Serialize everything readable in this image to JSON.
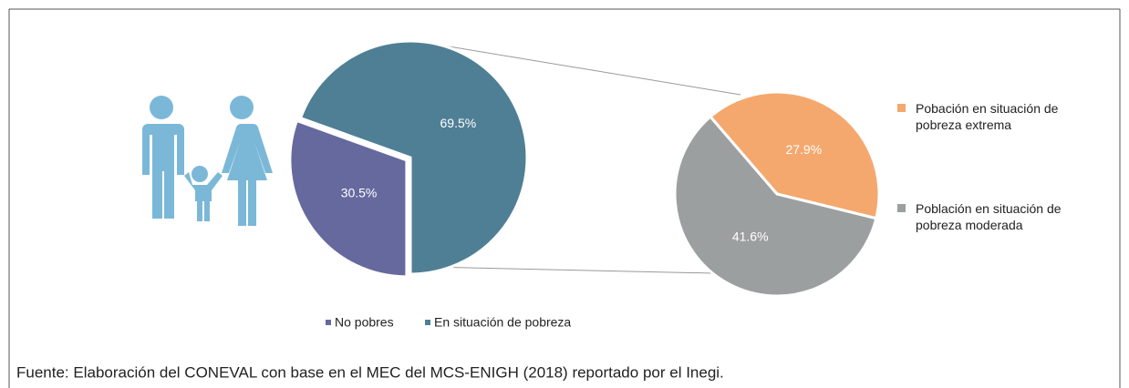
{
  "chart_data": [
    {
      "type": "pie",
      "categories": [
        "No pobres",
        "En situación de pobreza"
      ],
      "values": [
        30.5,
        69.5
      ],
      "value_labels": [
        "30.5%",
        "69.5%"
      ],
      "colors": [
        "#65699e",
        "#4f7f95"
      ]
    },
    {
      "type": "pie",
      "categories": [
        "Pobación en situación de pobreza extrema",
        "Población en situación de pobreza moderada"
      ],
      "values": [
        27.9,
        41.6
      ],
      "value_labels": [
        "27.9%",
        "41.6%"
      ],
      "colors": [
        "#f5a86e",
        "#9c9fa0"
      ]
    }
  ],
  "source": "Fuente: Elaboración del CONEVAL con base en el MEC del MCS-ENIGH (2018) reportado por el Inegi."
}
